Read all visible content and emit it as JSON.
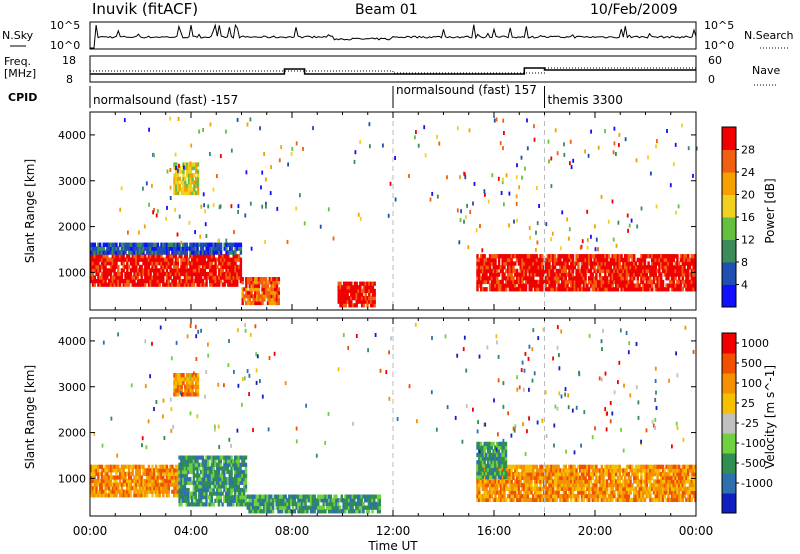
{
  "header": {
    "station": "Inuvik (fitACF)",
    "beam": "Beam 01",
    "date": "10/Feb/2009"
  },
  "top_panels": {
    "nsky_label": "N.Sky",
    "nsky_ticks": [
      "10^5",
      "10^0"
    ],
    "nsearch_label": "N.Search",
    "nsearch_ticks": [
      "10^5",
      "10^0"
    ],
    "freq_label": "Freq.",
    "freq_unit": "[MHz]",
    "freq_ticks": [
      "18",
      "8"
    ],
    "nave_label": "Nave",
    "nave_ticks": [
      "60",
      "0"
    ],
    "cpid_label": "CPID",
    "cpid_segments": [
      {
        "label": "normalsound (fast) -157",
        "start_hour": 0
      },
      {
        "label": "normalsound (fast) 157",
        "start_hour": 12
      },
      {
        "label": "themis 3300",
        "start_hour": 18
      }
    ]
  },
  "chart_data": [
    {
      "type": "heatmap",
      "name": "power",
      "ylabel": "Slant Range [km]",
      "xlabel": "Time UT",
      "ylim": [
        180,
        4500
      ],
      "xlim_hours": [
        0,
        24
      ],
      "x_ticks": [
        "00:00",
        "04:00",
        "08:00",
        "12:00",
        "16:00",
        "20:00",
        "00:00"
      ],
      "y_ticks": [
        "1000",
        "2000",
        "3000",
        "4000"
      ],
      "colorbar": {
        "label": "Power [dB]",
        "ticks": [
          "4",
          "8",
          "12",
          "16",
          "20",
          "24",
          "28"
        ],
        "colors": [
          "#1010ff",
          "#1f4fb0",
          "#3c8c5a",
          "#66c040",
          "#f0d020",
          "#f5a000",
          "#f06010",
          "#f00000"
        ]
      },
      "regions": [
        {
          "t0": 0.0,
          "t1": 6.0,
          "r0": 700,
          "r1": 1400,
          "level": 7
        },
        {
          "t0": 6.0,
          "t1": 7.5,
          "r0": 300,
          "r1": 900,
          "level": 6
        },
        {
          "t0": 9.8,
          "t1": 11.3,
          "r0": 250,
          "r1": 800,
          "level": 7
        },
        {
          "t0": 3.3,
          "t1": 4.3,
          "r0": 2700,
          "r1": 3400,
          "level": 4
        },
        {
          "t0": 15.3,
          "t1": 24.0,
          "r0": 600,
          "r1": 1400,
          "level": 7
        },
        {
          "t0": 0.0,
          "t1": 6.0,
          "r0": 1400,
          "r1": 1650,
          "level": 1
        }
      ]
    },
    {
      "type": "heatmap",
      "name": "velocity",
      "ylabel": "Slant Range [km]",
      "xlabel": "Time UT",
      "ylim": [
        180,
        4500
      ],
      "xlim_hours": [
        0,
        24
      ],
      "x_ticks": [
        "00:00",
        "04:00",
        "08:00",
        "12:00",
        "16:00",
        "20:00",
        "00:00"
      ],
      "y_ticks": [
        "1000",
        "2000",
        "3000",
        "4000"
      ],
      "colorbar": {
        "label": "Velocity [m s^-1]",
        "ticks": [
          "1000",
          "500",
          "100",
          "25",
          "-25",
          "-100",
          "-500",
          "-1000"
        ],
        "colors": [
          "#1020c0",
          "#2f6fb0",
          "#2f8f50",
          "#70d040",
          "#c0c0c0",
          "#f5c000",
          "#f59000",
          "#f05000",
          "#f00000"
        ]
      },
      "regions": [
        {
          "t0": 0.0,
          "t1": 3.5,
          "r0": 600,
          "r1": 1300,
          "level": 6
        },
        {
          "t0": 3.5,
          "t1": 6.2,
          "r0": 400,
          "r1": 1500,
          "level": 2
        },
        {
          "t0": 6.2,
          "t1": 11.5,
          "r0": 250,
          "r1": 650,
          "level": 2
        },
        {
          "t0": 3.3,
          "t1": 4.3,
          "r0": 2800,
          "r1": 3300,
          "level": 6
        },
        {
          "t0": 15.3,
          "t1": 24.0,
          "r0": 500,
          "r1": 1300,
          "level": 6
        },
        {
          "t0": 15.3,
          "t1": 16.5,
          "r0": 1000,
          "r1": 1800,
          "level": 2
        }
      ]
    }
  ]
}
